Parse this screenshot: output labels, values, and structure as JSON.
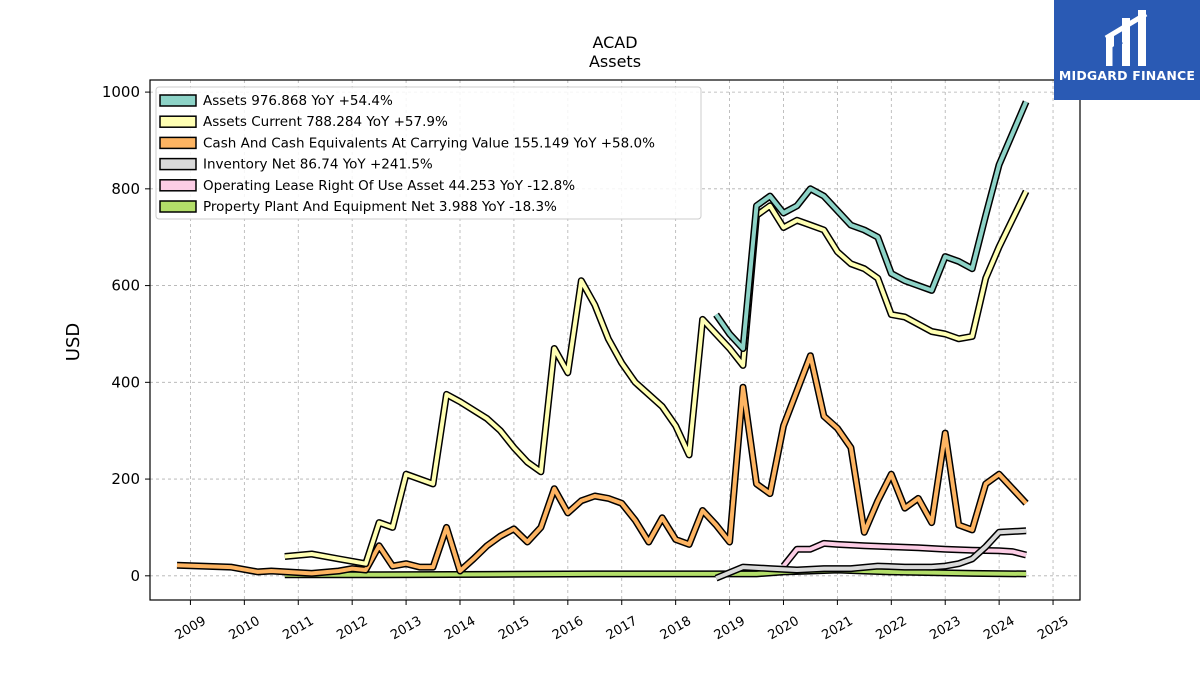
{
  "chart_data": {
    "type": "line",
    "title": "ACAD",
    "subtitle": "Assets",
    "ylabel": "USD",
    "xlabel": "",
    "ylim": [
      -50,
      1025
    ],
    "xlim": [
      2008.25,
      2025.5
    ],
    "yticks": [
      0,
      200,
      400,
      600,
      800,
      1000
    ],
    "xticks": [
      "2009",
      "2010",
      "2011",
      "2012",
      "2013",
      "2014",
      "2015",
      "2016",
      "2017",
      "2018",
      "2019",
      "2020",
      "2021",
      "2022",
      "2023",
      "2024",
      "2025"
    ],
    "grid": true,
    "legend_position": "top-left",
    "series": [
      {
        "name": "Assets  976.868 YoY +54.4%",
        "color": "#8dd3c7",
        "points": [
          [
            2018.75,
            540
          ],
          [
            2019.0,
            500
          ],
          [
            2019.25,
            470
          ],
          [
            2019.5,
            765
          ],
          [
            2019.75,
            785
          ],
          [
            2020.0,
            750
          ],
          [
            2020.25,
            765
          ],
          [
            2020.5,
            800
          ],
          [
            2020.75,
            785
          ],
          [
            2021.0,
            755
          ],
          [
            2021.25,
            725
          ],
          [
            2021.5,
            715
          ],
          [
            2021.75,
            700
          ],
          [
            2022.0,
            625
          ],
          [
            2022.25,
            610
          ],
          [
            2022.5,
            600
          ],
          [
            2022.75,
            590
          ],
          [
            2023.0,
            660
          ],
          [
            2023.25,
            650
          ],
          [
            2023.5,
            635
          ],
          [
            2023.75,
            745
          ],
          [
            2024.0,
            850
          ],
          [
            2024.5,
            980
          ]
        ]
      },
      {
        "name": "Assets Current  788.284 YoY +57.9%",
        "color": "#ffffb3",
        "points": [
          [
            2010.75,
            40
          ],
          [
            2011.25,
            45
          ],
          [
            2011.75,
            35
          ],
          [
            2012.25,
            25
          ],
          [
            2012.5,
            110
          ],
          [
            2012.75,
            100
          ],
          [
            2013.0,
            210
          ],
          [
            2013.5,
            190
          ],
          [
            2013.75,
            375
          ],
          [
            2014.0,
            360
          ],
          [
            2014.5,
            325
          ],
          [
            2014.75,
            300
          ],
          [
            2015.0,
            265
          ],
          [
            2015.25,
            235
          ],
          [
            2015.5,
            215
          ],
          [
            2015.75,
            470
          ],
          [
            2016.0,
            420
          ],
          [
            2016.25,
            610
          ],
          [
            2016.5,
            560
          ],
          [
            2016.75,
            490
          ],
          [
            2017.0,
            440
          ],
          [
            2017.25,
            400
          ],
          [
            2017.5,
            375
          ],
          [
            2017.75,
            350
          ],
          [
            2018.0,
            310
          ],
          [
            2018.25,
            250
          ],
          [
            2018.5,
            530
          ],
          [
            2018.75,
            500
          ],
          [
            2019.0,
            470
          ],
          [
            2019.25,
            435
          ],
          [
            2019.5,
            745
          ],
          [
            2019.75,
            765
          ],
          [
            2020.0,
            720
          ],
          [
            2020.25,
            735
          ],
          [
            2020.5,
            725
          ],
          [
            2020.75,
            715
          ],
          [
            2021.0,
            670
          ],
          [
            2021.25,
            645
          ],
          [
            2021.5,
            635
          ],
          [
            2021.75,
            615
          ],
          [
            2022.0,
            540
          ],
          [
            2022.25,
            535
          ],
          [
            2022.5,
            520
          ],
          [
            2022.75,
            505
          ],
          [
            2023.0,
            500
          ],
          [
            2023.25,
            490
          ],
          [
            2023.5,
            495
          ],
          [
            2023.75,
            615
          ],
          [
            2024.0,
            680
          ],
          [
            2024.5,
            795
          ]
        ]
      },
      {
        "name": "Cash And Cash Equivalents At Carrying Value  155.149 YoY +58.0%",
        "color": "#fdb462",
        "points": [
          [
            2008.75,
            22
          ],
          [
            2009.75,
            18
          ],
          [
            2010.25,
            8
          ],
          [
            2010.5,
            10
          ],
          [
            2011.25,
            5
          ],
          [
            2011.75,
            10
          ],
          [
            2012.0,
            15
          ],
          [
            2012.25,
            12
          ],
          [
            2012.5,
            62
          ],
          [
            2012.75,
            20
          ],
          [
            2013.0,
            25
          ],
          [
            2013.25,
            18
          ],
          [
            2013.5,
            18
          ],
          [
            2013.75,
            100
          ],
          [
            2014.0,
            10
          ],
          [
            2014.25,
            35
          ],
          [
            2014.5,
            62
          ],
          [
            2014.75,
            82
          ],
          [
            2015.0,
            97
          ],
          [
            2015.25,
            70
          ],
          [
            2015.5,
            100
          ],
          [
            2015.75,
            180
          ],
          [
            2016.0,
            130
          ],
          [
            2016.25,
            155
          ],
          [
            2016.5,
            165
          ],
          [
            2016.75,
            160
          ],
          [
            2017.0,
            150
          ],
          [
            2017.25,
            115
          ],
          [
            2017.5,
            70
          ],
          [
            2017.75,
            120
          ],
          [
            2018.0,
            75
          ],
          [
            2018.25,
            65
          ],
          [
            2018.5,
            135
          ],
          [
            2018.75,
            105
          ],
          [
            2019.0,
            70
          ],
          [
            2019.25,
            390
          ],
          [
            2019.5,
            190
          ],
          [
            2019.75,
            170
          ],
          [
            2020.0,
            310
          ],
          [
            2020.5,
            455
          ],
          [
            2020.75,
            330
          ],
          [
            2021.0,
            305
          ],
          [
            2021.25,
            265
          ],
          [
            2021.5,
            90
          ],
          [
            2021.75,
            155
          ],
          [
            2022.0,
            210
          ],
          [
            2022.25,
            140
          ],
          [
            2022.5,
            160
          ],
          [
            2022.75,
            110
          ],
          [
            2023.0,
            295
          ],
          [
            2023.25,
            105
          ],
          [
            2023.5,
            95
          ],
          [
            2023.75,
            190
          ],
          [
            2024.0,
            210
          ],
          [
            2024.25,
            180
          ],
          [
            2024.5,
            150
          ]
        ]
      },
      {
        "name": "Inventory Net  86.74 YoY +241.5%",
        "color": "#d9d9d9",
        "points": [
          [
            2018.75,
            -5
          ],
          [
            2019.25,
            18
          ],
          [
            2019.75,
            15
          ],
          [
            2020.25,
            12
          ],
          [
            2020.75,
            15
          ],
          [
            2021.25,
            15
          ],
          [
            2021.75,
            20
          ],
          [
            2022.25,
            18
          ],
          [
            2022.75,
            18
          ],
          [
            2023.0,
            20
          ],
          [
            2023.25,
            25
          ],
          [
            2023.5,
            35
          ],
          [
            2023.75,
            60
          ],
          [
            2024.0,
            90
          ],
          [
            2024.5,
            93
          ]
        ]
      },
      {
        "name": "Operating Lease Right Of Use Asset  44.253 YoY -12.8%",
        "color": "#fccde5",
        "points": [
          [
            2020.0,
            20
          ],
          [
            2020.25,
            55
          ],
          [
            2020.5,
            55
          ],
          [
            2020.75,
            67
          ],
          [
            2021.0,
            65
          ],
          [
            2021.5,
            62
          ],
          [
            2022.0,
            60
          ],
          [
            2022.5,
            58
          ],
          [
            2023.0,
            55
          ],
          [
            2023.5,
            53
          ],
          [
            2024.0,
            52
          ],
          [
            2024.25,
            50
          ],
          [
            2024.5,
            43
          ]
        ]
      },
      {
        "name": "Property Plant And Equipment Net  3.988 YoY -18.3%",
        "color": "#b3de69",
        "points": [
          [
            2010.75,
            2
          ],
          [
            2012.5,
            2
          ],
          [
            2014.5,
            3
          ],
          [
            2016.5,
            4
          ],
          [
            2018.5,
            4
          ],
          [
            2019.5,
            4
          ],
          [
            2020.0,
            8
          ],
          [
            2020.5,
            10
          ],
          [
            2021.0,
            12
          ],
          [
            2021.5,
            10
          ],
          [
            2022.0,
            8
          ],
          [
            2022.5,
            7
          ],
          [
            2023.0,
            6
          ],
          [
            2023.5,
            5
          ],
          [
            2024.5,
            4
          ]
        ]
      }
    ]
  },
  "brand": {
    "name": "MIDGARD FINANCE",
    "color": "#2a5ab4"
  }
}
